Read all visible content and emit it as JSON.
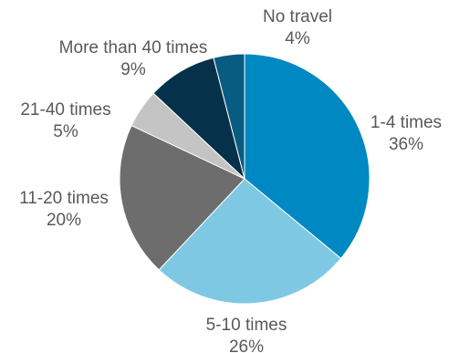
{
  "chart_data": {
    "type": "pie",
    "start_angle_deg": 0,
    "direction": "clockwise",
    "slices": [
      {
        "category": "1-4 times",
        "value": 36,
        "value_label": "36%",
        "color": "#0088c2"
      },
      {
        "category": "5-10 times",
        "value": 26,
        "value_label": "26%",
        "color": "#7ec8e3"
      },
      {
        "category": "11-20 times",
        "value": 20,
        "value_label": "20%",
        "color": "#6d6d6d"
      },
      {
        "category": "21-40 times",
        "value": 5,
        "value_label": "5%",
        "color": "#c4c4c4"
      },
      {
        "category": "More than 40 times",
        "value": 9,
        "value_label": "9%",
        "color": "#05314a"
      },
      {
        "category": "No travel",
        "value": 4,
        "value_label": "4%",
        "color": "#085c82"
      }
    ]
  }
}
